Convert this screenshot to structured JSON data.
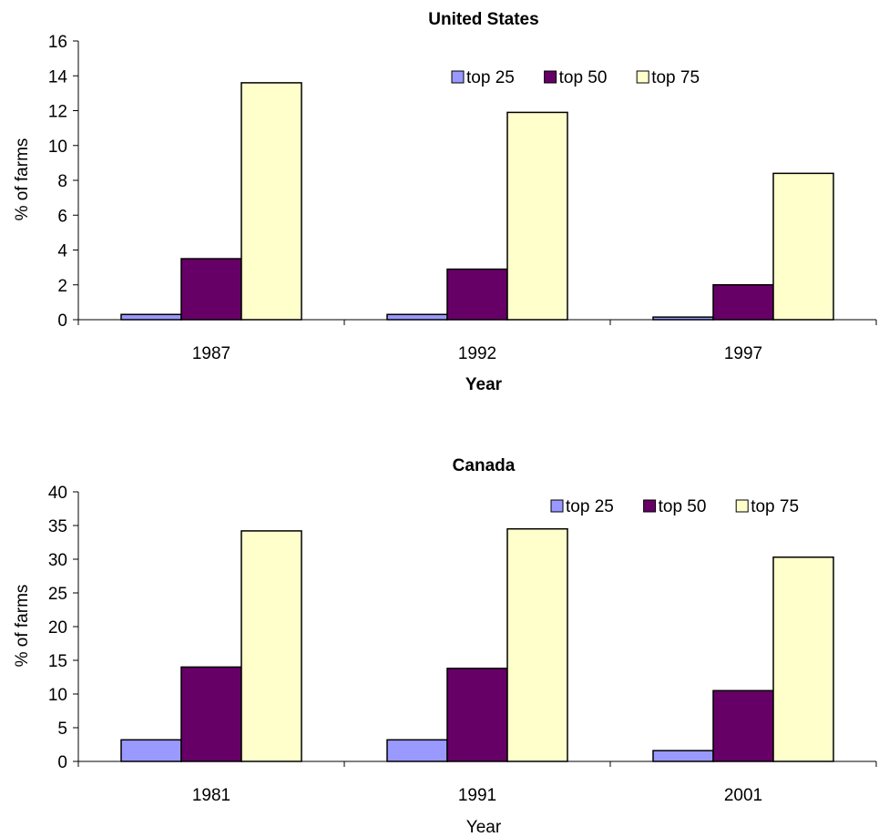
{
  "chart_data": [
    {
      "type": "bar",
      "title": "United States",
      "xlabel": "Year",
      "ylabel": "% of farms",
      "ylim": [
        0,
        16
      ],
      "yticks": [
        0,
        2,
        4,
        6,
        8,
        10,
        12,
        14,
        16
      ],
      "categories": [
        "1987",
        "1992",
        "1997"
      ],
      "series": [
        {
          "name": "top 25",
          "values": [
            0.3,
            0.3,
            0.15
          ]
        },
        {
          "name": "top 50",
          "values": [
            3.5,
            2.9,
            2.0
          ]
        },
        {
          "name": "top 75",
          "values": [
            13.6,
            11.9,
            8.4
          ]
        }
      ],
      "grid": false,
      "legend": "top-right"
    },
    {
      "type": "bar",
      "title": "Canada",
      "xlabel": "Year",
      "ylabel": "% of farms",
      "ylim": [
        0,
        40
      ],
      "yticks": [
        0,
        5,
        10,
        15,
        20,
        25,
        30,
        35,
        40
      ],
      "categories": [
        "1981",
        "1991",
        "2001"
      ],
      "series": [
        {
          "name": "top 25",
          "values": [
            3.2,
            3.2,
            1.6
          ]
        },
        {
          "name": "top 50",
          "values": [
            14.0,
            13.8,
            10.5
          ]
        },
        {
          "name": "top 75",
          "values": [
            34.2,
            34.5,
            30.3
          ]
        }
      ],
      "grid": false,
      "legend": "top-right"
    }
  ],
  "colors": {
    "top 25": "#9999ff",
    "top 50": "#660066",
    "top 75": "#ffffcc"
  }
}
